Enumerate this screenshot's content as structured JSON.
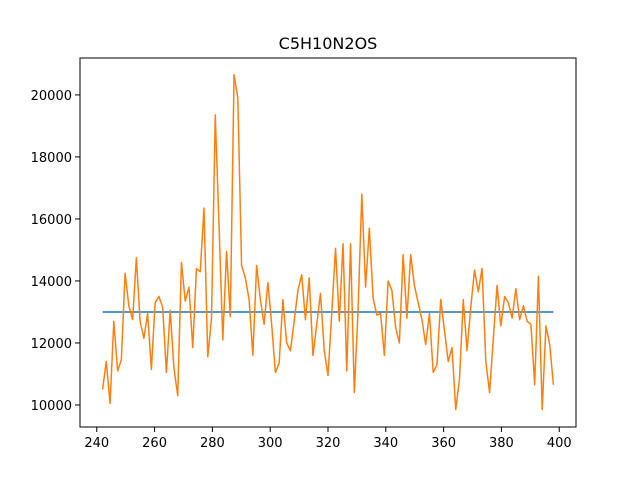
{
  "chart_data": {
    "type": "line",
    "title": "C5H10N2OS",
    "xlim": [
      234.2,
      405.8
    ],
    "xticks": [
      240,
      260,
      280,
      300,
      320,
      340,
      360,
      380,
      400
    ],
    "ylim": [
      9290,
      21190
    ],
    "yticks": [
      10000,
      12000,
      14000,
      16000,
      18000,
      20000
    ],
    "series": [
      {
        "color": "#1f77b4",
        "x": [
          242,
          398
        ],
        "values": [
          13000,
          13000
        ]
      },
      {
        "color": "#ff7f0e",
        "x": [
          242,
          243.3,
          244.6,
          245.9,
          247.2,
          248.5,
          249.8,
          251.1,
          252.4,
          253.7,
          255,
          256.3,
          257.6,
          258.9,
          260.2,
          261.5,
          262.8,
          264.1,
          265.4,
          266.7,
          268,
          269.3,
          270.6,
          271.9,
          273.2,
          274.5,
          275.8,
          277.1,
          278.4,
          279.7,
          281,
          282.3,
          283.6,
          284.9,
          286.2,
          287.5,
          288.8,
          290.1,
          291.4,
          292.7,
          294,
          295.3,
          296.6,
          297.9,
          299.2,
          300.5,
          301.8,
          303.1,
          304.4,
          305.7,
          307,
          308.3,
          309.6,
          310.9,
          312.2,
          313.5,
          314.8,
          316.1,
          317.4,
          318.7,
          320,
          321.3,
          322.6,
          323.9,
          325.2,
          326.5,
          327.8,
          329.1,
          330.4,
          331.7,
          333,
          334.3,
          335.6,
          336.9,
          338.2,
          339.5,
          340.8,
          342.1,
          343.4,
          344.7,
          346,
          347.3,
          348.6,
          349.9,
          351.2,
          352.5,
          353.8,
          355.1,
          356.4,
          357.7,
          359,
          360.3,
          361.6,
          362.9,
          364.2,
          365.5,
          366.8,
          368.1,
          369.4,
          370.7,
          372,
          373.3,
          374.6,
          375.9,
          377.2,
          378.5,
          379.8,
          381.1,
          382.4,
          383.7,
          385,
          386.3,
          387.6,
          388.9,
          390.2,
          391.5,
          392.8,
          394.1,
          395.4,
          396.7,
          398
        ],
        "values": [
          10500,
          11400,
          10050,
          12700,
          11100,
          11450,
          14250,
          13200,
          12750,
          14750,
          12700,
          12150,
          12950,
          11150,
          13300,
          13500,
          13150,
          11050,
          13050,
          11200,
          10300,
          14600,
          13350,
          13800,
          11850,
          14400,
          14300,
          16350,
          11550,
          12800,
          19350,
          15800,
          12100,
          14950,
          12850,
          20650,
          19900,
          14500,
          14100,
          13400,
          11600,
          14500,
          13400,
          12600,
          13950,
          12600,
          11050,
          11350,
          13400,
          12000,
          11750,
          12700,
          13700,
          14200,
          12750,
          14100,
          11600,
          12600,
          13600,
          11750,
          10950,
          12950,
          15050,
          12700,
          15200,
          11100,
          15200,
          10400,
          13050,
          16800,
          13800,
          15700,
          13450,
          12900,
          12950,
          11600,
          14000,
          13700,
          12500,
          12000,
          14850,
          12800,
          14850,
          13850,
          13300,
          12750,
          11950,
          12950,
          11050,
          11300,
          13400,
          12400,
          11400,
          11850,
          9850,
          10850,
          13400,
          11750,
          13150,
          14350,
          13650,
          14400,
          11400,
          10400,
          12150,
          13850,
          12550,
          13500,
          13300,
          12800,
          13750,
          12750,
          13200,
          12700,
          12600,
          10650,
          14150,
          9850,
          12550,
          11950,
          10650
        ]
      }
    ]
  }
}
